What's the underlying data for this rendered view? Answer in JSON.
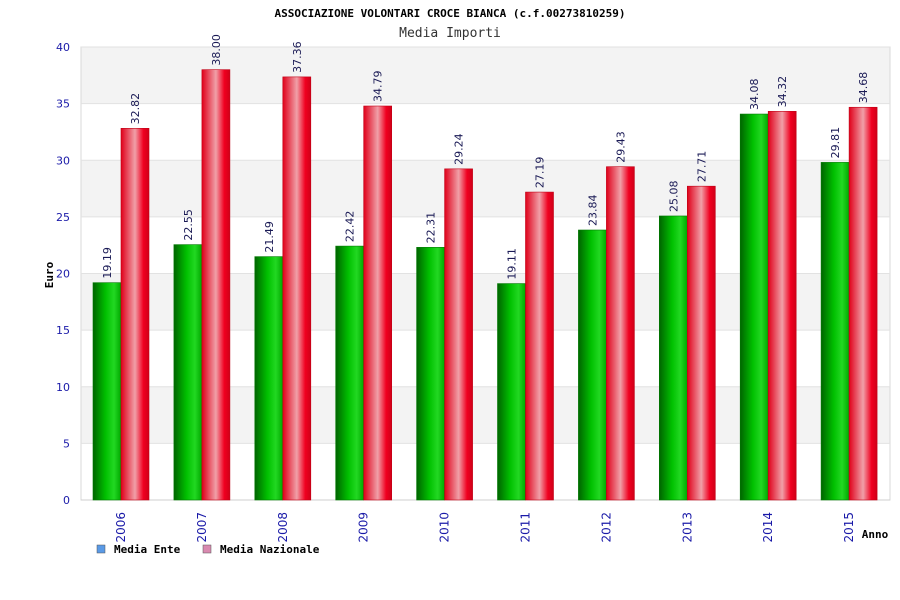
{
  "chart_data": {
    "type": "bar",
    "title": "ASSOCIAZIONE VOLONTARI CROCE BIANCA (c.f.00273810259)",
    "subtitle": "Media Importi",
    "xlabel": "Anno",
    "ylabel": "Euro",
    "ylim": [
      0,
      40
    ],
    "yticks": [
      0,
      5,
      10,
      15,
      20,
      25,
      30,
      35,
      40
    ],
    "categories": [
      "2006",
      "2007",
      "2008",
      "2009",
      "2010",
      "2011",
      "2012",
      "2013",
      "2014",
      "2015"
    ],
    "series": [
      {
        "name": "Media Ente",
        "color": "#0a9a0a",
        "legend_color": "#5a9ae6",
        "values": [
          19.19,
          22.55,
          21.49,
          22.42,
          22.31,
          19.11,
          23.84,
          25.08,
          34.08,
          29.81
        ],
        "labels": [
          "19.19",
          "22.55",
          "21.49",
          "22.42",
          "22.31",
          "19.11",
          "23.84",
          "25.08",
          "34.08",
          "29.81"
        ]
      },
      {
        "name": "Media Nazionale",
        "color": "#e8001a",
        "legend_color": "#d98ab0",
        "values": [
          32.82,
          38.0,
          37.36,
          34.79,
          29.24,
          27.19,
          29.43,
          27.71,
          34.32,
          34.68
        ],
        "labels": [
          "32.82",
          "38.00",
          "37.36",
          "34.79",
          "29.24",
          "27.19",
          "29.43",
          "27.71",
          "34.32",
          "34.68"
        ]
      }
    ],
    "grid": true,
    "legend_position": "bottom-left"
  }
}
